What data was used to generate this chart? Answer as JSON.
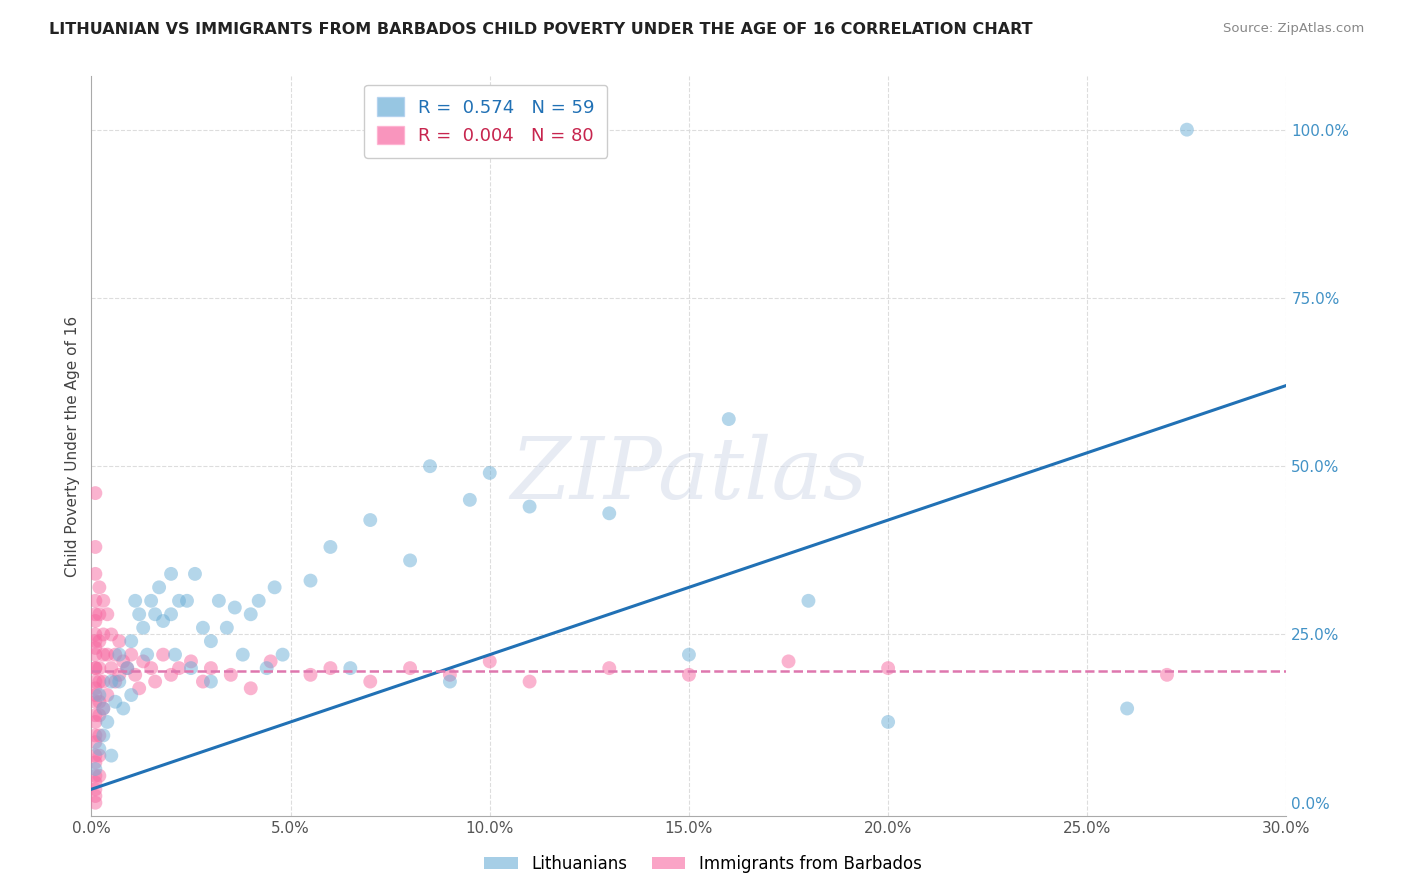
{
  "title": "LITHUANIAN VS IMMIGRANTS FROM BARBADOS CHILD POVERTY UNDER THE AGE OF 16 CORRELATION CHART",
  "source": "Source: ZipAtlas.com",
  "ylabel": "Child Poverty Under the Age of 16",
  "xlim": [
    0.0,
    0.3
  ],
  "ylim": [
    -0.02,
    1.08
  ],
  "legend1_label": "R =  0.574   N = 59",
  "legend2_label": "R =  0.004   N = 80",
  "legend1_color": "#6baed6",
  "legend2_color": "#f768a1",
  "blue_line_x": [
    0.0,
    0.3
  ],
  "blue_line_y": [
    0.02,
    0.62
  ],
  "pink_line_x": [
    0.0,
    0.3
  ],
  "pink_line_y": [
    0.195,
    0.195
  ],
  "watermark_text": "ZIPatlas",
  "grid_color": "#dddddd",
  "blue_color": "#6baed6",
  "pink_color": "#f768a1",
  "blue_line_color": "#2171b5",
  "pink_line_color": "#de77ae",
  "blue_scatter_x": [
    0.001,
    0.002,
    0.002,
    0.003,
    0.003,
    0.004,
    0.005,
    0.005,
    0.006,
    0.007,
    0.007,
    0.008,
    0.009,
    0.01,
    0.01,
    0.011,
    0.012,
    0.013,
    0.014,
    0.015,
    0.016,
    0.017,
    0.018,
    0.02,
    0.02,
    0.021,
    0.022,
    0.024,
    0.025,
    0.026,
    0.028,
    0.03,
    0.03,
    0.032,
    0.034,
    0.036,
    0.038,
    0.04,
    0.042,
    0.044,
    0.046,
    0.048,
    0.055,
    0.06,
    0.065,
    0.07,
    0.08,
    0.085,
    0.09,
    0.095,
    0.1,
    0.11,
    0.13,
    0.15,
    0.16,
    0.18,
    0.2,
    0.26,
    0.275
  ],
  "blue_scatter_y": [
    0.05,
    0.08,
    0.16,
    0.1,
    0.14,
    0.12,
    0.07,
    0.18,
    0.15,
    0.18,
    0.22,
    0.14,
    0.2,
    0.16,
    0.24,
    0.3,
    0.28,
    0.26,
    0.22,
    0.3,
    0.28,
    0.32,
    0.27,
    0.28,
    0.34,
    0.22,
    0.3,
    0.3,
    0.2,
    0.34,
    0.26,
    0.18,
    0.24,
    0.3,
    0.26,
    0.29,
    0.22,
    0.28,
    0.3,
    0.2,
    0.32,
    0.22,
    0.33,
    0.38,
    0.2,
    0.42,
    0.36,
    0.5,
    0.18,
    0.45,
    0.49,
    0.44,
    0.43,
    0.22,
    0.57,
    0.3,
    0.12,
    0.14,
    1.0
  ],
  "pink_scatter_x": [
    0.001,
    0.001,
    0.001,
    0.001,
    0.001,
    0.001,
    0.001,
    0.001,
    0.001,
    0.001,
    0.001,
    0.001,
    0.001,
    0.001,
    0.001,
    0.001,
    0.001,
    0.001,
    0.001,
    0.001,
    0.001,
    0.001,
    0.001,
    0.001,
    0.001,
    0.001,
    0.001,
    0.002,
    0.002,
    0.002,
    0.002,
    0.002,
    0.002,
    0.002,
    0.002,
    0.002,
    0.002,
    0.003,
    0.003,
    0.003,
    0.003,
    0.003,
    0.004,
    0.004,
    0.004,
    0.005,
    0.005,
    0.006,
    0.006,
    0.007,
    0.007,
    0.008,
    0.009,
    0.01,
    0.011,
    0.012,
    0.013,
    0.015,
    0.016,
    0.018,
    0.02,
    0.022,
    0.025,
    0.028,
    0.03,
    0.035,
    0.04,
    0.045,
    0.055,
    0.06,
    0.07,
    0.08,
    0.09,
    0.1,
    0.11,
    0.13,
    0.15,
    0.175,
    0.2,
    0.27
  ],
  "pink_scatter_y": [
    0.46,
    0.38,
    0.34,
    0.3,
    0.27,
    0.25,
    0.23,
    0.22,
    0.2,
    0.18,
    0.17,
    0.15,
    0.13,
    0.12,
    0.1,
    0.09,
    0.07,
    0.06,
    0.04,
    0.03,
    0.02,
    0.01,
    0.0,
    0.28,
    0.24,
    0.2,
    0.16,
    0.32,
    0.28,
    0.24,
    0.2,
    0.18,
    0.15,
    0.13,
    0.1,
    0.07,
    0.04,
    0.3,
    0.25,
    0.22,
    0.18,
    0.14,
    0.28,
    0.22,
    0.16,
    0.25,
    0.2,
    0.22,
    0.18,
    0.24,
    0.19,
    0.21,
    0.2,
    0.22,
    0.19,
    0.17,
    0.21,
    0.2,
    0.18,
    0.22,
    0.19,
    0.2,
    0.21,
    0.18,
    0.2,
    0.19,
    0.17,
    0.21,
    0.19,
    0.2,
    0.18,
    0.2,
    0.19,
    0.21,
    0.18,
    0.2,
    0.19,
    0.21,
    0.2,
    0.19
  ]
}
